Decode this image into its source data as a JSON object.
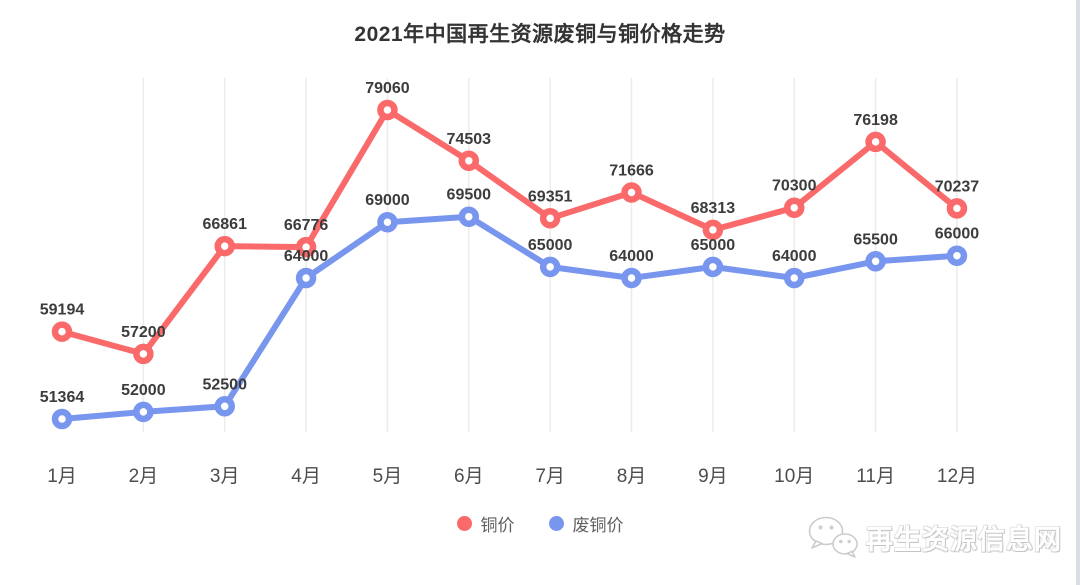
{
  "title": "2021年中国再生资源废铜与铜价格走势",
  "legend": {
    "items": [
      {
        "label": "铜价",
        "color": "#fa6a6a"
      },
      {
        "label": "废铜价",
        "color": "#7896ee"
      }
    ]
  },
  "watermark": {
    "icon": "wechat-icon",
    "text": "再生资源信息网"
  },
  "chart_data": {
    "type": "line",
    "title": "2021年中国再生资源废铜与铜价格走势",
    "categories": [
      "1月",
      "2月",
      "3月",
      "4月",
      "5月",
      "6月",
      "7月",
      "8月",
      "9月",
      "10月",
      "11月",
      "12月"
    ],
    "series": [
      {
        "name": "铜价",
        "color": "#fa6a6a",
        "values": [
          59194,
          57200,
          66861,
          66776,
          79060,
          74503,
          69351,
          71666,
          68313,
          70300,
          76198,
          70237
        ]
      },
      {
        "name": "废铜价",
        "color": "#7896ee",
        "values": [
          51364,
          52000,
          52500,
          64000,
          69000,
          69500,
          65000,
          64000,
          65000,
          64000,
          65500,
          66000
        ]
      }
    ],
    "value_labels": true,
    "grid": "vertical-only",
    "legend_position": "bottom",
    "ylim": [
      51000,
      80000
    ]
  }
}
